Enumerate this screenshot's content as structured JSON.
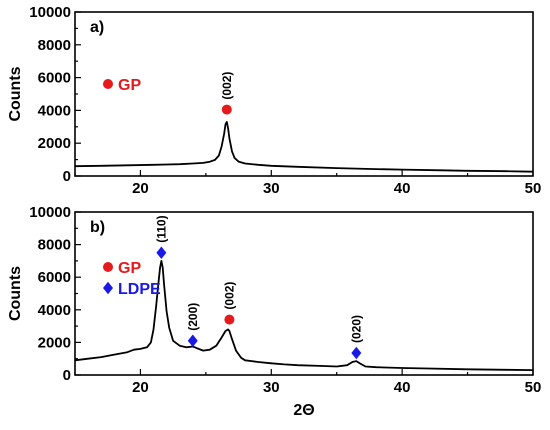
{
  "colors": {
    "gp": "#e41a1c",
    "ldpe": "#1a1ae6",
    "line": "#000000"
  },
  "chart_data": [
    {
      "type": "line",
      "panel_label": "a)",
      "xlabel": "",
      "ylabel": "Counts",
      "xlim": [
        15,
        50
      ],
      "ylim": [
        0,
        10000
      ],
      "xticks": [
        20,
        30,
        40,
        50
      ],
      "yticks": [
        0,
        2000,
        4000,
        6000,
        8000,
        10000
      ],
      "legend": [
        {
          "name": "GP",
          "marker": "circle",
          "color": "#e41a1c"
        }
      ],
      "annotations": [
        {
          "label": "(002)",
          "x": 26.6,
          "marker": "circle",
          "marker_y": 4050,
          "color": "#e41a1c"
        }
      ],
      "series": [
        {
          "name": "",
          "x": [
            15,
            17,
            19,
            21,
            22,
            23,
            24,
            24.8,
            25.3,
            25.7,
            26.0,
            26.2,
            26.4,
            26.5,
            26.6,
            26.7,
            26.8,
            27.0,
            27.2,
            27.5,
            28,
            29,
            30,
            32,
            35,
            38,
            40,
            43,
            45,
            48,
            50
          ],
          "y": [
            600,
            620,
            650,
            680,
            700,
            720,
            760,
            800,
            870,
            980,
            1250,
            1800,
            2600,
            3150,
            3300,
            2900,
            2300,
            1500,
            1100,
            880,
            760,
            680,
            620,
            560,
            480,
            420,
            390,
            350,
            320,
            290,
            260
          ]
        }
      ]
    },
    {
      "type": "line",
      "panel_label": "b)",
      "xlabel": "2Θ",
      "ylabel": "Counts",
      "xlim": [
        15,
        50
      ],
      "ylim": [
        0,
        10000
      ],
      "xticks": [
        20,
        30,
        40,
        50
      ],
      "yticks": [
        0,
        2000,
        4000,
        6000,
        8000,
        10000
      ],
      "legend": [
        {
          "name": "GP",
          "marker": "circle",
          "color": "#e41a1c"
        },
        {
          "name": "LDPE",
          "marker": "diamond",
          "color": "#1a1ae6"
        }
      ],
      "annotations": [
        {
          "label": "(110)",
          "x": 21.6,
          "marker": "diamond",
          "marker_y": 7500,
          "color": "#1a1ae6"
        },
        {
          "label": "(200)",
          "x": 24.0,
          "marker": "diamond",
          "marker_y": 2100,
          "color": "#1a1ae6"
        },
        {
          "label": "(002)",
          "x": 26.8,
          "marker": "circle",
          "marker_y": 3400,
          "color": "#e41a1c"
        },
        {
          "label": "(020)",
          "x": 36.5,
          "marker": "diamond",
          "marker_y": 1350,
          "color": "#1a1ae6"
        }
      ],
      "series": [
        {
          "name": "",
          "x": [
            15,
            16,
            17,
            18,
            19,
            19.5,
            20,
            20.5,
            20.8,
            21.0,
            21.2,
            21.4,
            21.5,
            21.6,
            21.7,
            21.8,
            22.0,
            22.2,
            22.5,
            23,
            23.5,
            24.0,
            24.3,
            24.8,
            25.3,
            25.8,
            26.2,
            26.5,
            26.7,
            26.8,
            27.0,
            27.3,
            27.7,
            28,
            28.5,
            29,
            30,
            31,
            32,
            34,
            35,
            35.8,
            36.2,
            36.5,
            36.8,
            37.2,
            38,
            40,
            42,
            45,
            48,
            50
          ],
          "y": [
            900,
            1000,
            1100,
            1250,
            1400,
            1550,
            1600,
            1700,
            2000,
            2800,
            4200,
            5800,
            6600,
            7000,
            6600,
            5600,
            3900,
            2900,
            2100,
            1800,
            1700,
            1750,
            1650,
            1500,
            1550,
            1800,
            2300,
            2700,
            2800,
            2700,
            2200,
            1500,
            1050,
            900,
            850,
            800,
            720,
            650,
            600,
            550,
            520,
            600,
            800,
            850,
            700,
            520,
            480,
            430,
            400,
            350,
            320,
            300
          ]
        }
      ]
    }
  ]
}
